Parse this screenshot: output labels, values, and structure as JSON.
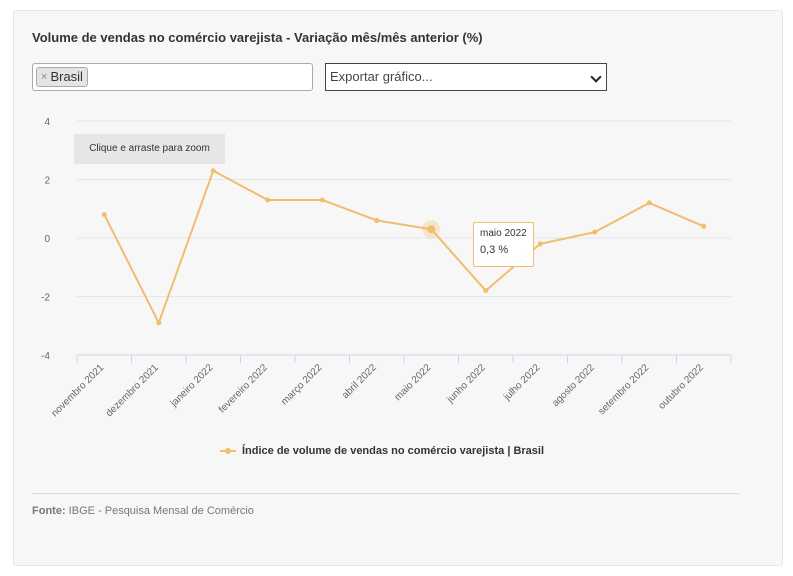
{
  "chart_data": {
    "type": "line",
    "title": "Volume de vendas no comércio varejista - Variação mês/mês anterior (%)",
    "categories": [
      "novembro 2021",
      "dezembro 2021",
      "janeiro 2022",
      "fevereiro 2022",
      "março 2022",
      "abril 2022",
      "maio 2022",
      "junho 2022",
      "julho 2022",
      "agosto 2022",
      "setembro 2022",
      "outubro 2022"
    ],
    "series": [
      {
        "name": "Índice de volume de vendas no comércio varejista | Brasil",
        "values": [
          0.8,
          -2.9,
          2.3,
          1.3,
          1.3,
          0.6,
          0.3,
          -1.8,
          -0.2,
          0.2,
          1.2,
          0.4
        ]
      }
    ],
    "y_ticks": [
      "4",
      "2",
      "0",
      "-2",
      "-4"
    ],
    "ylim": [
      -4,
      4
    ],
    "grid": true,
    "legend_position": "bottom",
    "color": "#f1bd6e",
    "tooltip": {
      "category": "maio 2022",
      "value": "0,3 %"
    }
  },
  "filter": {
    "chip_label": "Brasil",
    "remove_symbol": "×"
  },
  "export": {
    "label": "Exportar gráfico..."
  },
  "zoom_hint": "Clique e arraste para zoom",
  "source": {
    "label": "Fonte:",
    "text": "IBGE - Pesquisa Mensal de Comércio"
  }
}
